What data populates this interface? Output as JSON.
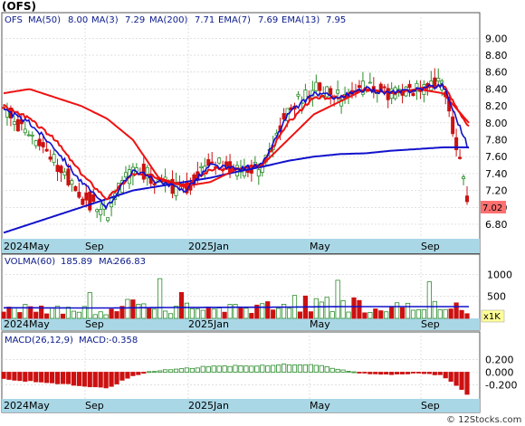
{
  "title": "(OFS)",
  "watermark": "© 12Stocks.com",
  "colors": {
    "bg": "#ffffff",
    "grid": "#cfcfcf",
    "axisband": "#a9d7e6",
    "up": "#2a8c2a",
    "down": "#cc1111",
    "ma_blue": "#1111cc",
    "ema_red": "#ee1111",
    "label_navy": "#0a1a8a",
    "price_box": "#ff7070"
  },
  "x_labels": [
    {
      "text": "2024May"
    },
    {
      "text": "Sep"
    },
    {
      "text": "2025Jan"
    },
    {
      "text": "May"
    },
    {
      "text": "Sep"
    }
  ],
  "price_panel": {
    "ticker": "OFS",
    "legend": [
      {
        "name": "MA(50)",
        "value": "8.00"
      },
      {
        "name": "MA(3)",
        "value": "7.29"
      },
      {
        "name": "MA(200)",
        "value": "7.71"
      },
      {
        "name": "EMA(7)",
        "value": "7.69"
      },
      {
        "name": "EMA(13)",
        "value": "7.95"
      }
    ],
    "yticks": [
      "9.00",
      "8.80",
      "8.60",
      "8.40",
      "8.20",
      "8.00",
      "7.80",
      "7.60",
      "7.40",
      "7.20",
      "7.00",
      "6.80"
    ],
    "last_price": "7.02"
  },
  "volume_panel": {
    "legend_name": "VOLMA(60)",
    "legend_value": "185.89",
    "ma_name": "MA:",
    "ma_value": "266.83",
    "yticks": [
      "1000",
      "500"
    ],
    "unit_badge": "x1K"
  },
  "macd_panel": {
    "legend_name": "MACD(26,12,9)",
    "legend_label": "MACD:",
    "legend_value": "-0.358",
    "yticks": [
      "0.200",
      "0.000",
      "-0.200"
    ]
  },
  "chart_data": {
    "type": "candlestick",
    "x": [
      "2024-04",
      "2024-05",
      "2024-06",
      "2024-07",
      "2024-08",
      "2024-09",
      "2024-10",
      "2024-11",
      "2024-12",
      "2025-01",
      "2025-02",
      "2025-03",
      "2025-04",
      "2025-05",
      "2025-06",
      "2025-07",
      "2025-08",
      "2025-09",
      "2025-10"
    ],
    "close": [
      8.15,
      7.85,
      7.55,
      7.1,
      6.95,
      7.5,
      7.3,
      7.2,
      7.55,
      7.45,
      7.45,
      8.2,
      8.4,
      8.3,
      8.45,
      8.35,
      8.4,
      8.45,
      7.02
    ],
    "ema7": [
      8.15,
      8.0,
      7.7,
      7.3,
      7.0,
      7.45,
      7.3,
      7.2,
      7.5,
      7.45,
      7.5,
      8.1,
      8.35,
      8.3,
      8.4,
      8.35,
      8.4,
      8.45,
      7.69
    ],
    "ema13": [
      8.2,
      8.05,
      7.8,
      7.4,
      7.1,
      7.4,
      7.35,
      7.25,
      7.45,
      7.45,
      7.5,
      8.0,
      8.3,
      8.3,
      8.4,
      8.35,
      8.4,
      8.45,
      7.95
    ],
    "ma50": [
      8.35,
      8.4,
      8.3,
      8.2,
      8.05,
      7.8,
      7.35,
      7.25,
      7.3,
      7.45,
      7.5,
      7.8,
      8.1,
      8.25,
      8.4,
      8.35,
      8.4,
      8.35,
      8.0
    ],
    "ma200": [
      6.7,
      6.8,
      6.9,
      7.0,
      7.1,
      7.2,
      7.25,
      7.3,
      7.35,
      7.42,
      7.48,
      7.55,
      7.6,
      7.63,
      7.64,
      7.67,
      7.69,
      7.71,
      7.71
    ],
    "volume": [
      150,
      240,
      200,
      170,
      180,
      300,
      260,
      220,
      200,
      260,
      230,
      350,
      330,
      320,
      300,
      240,
      250,
      280,
      186
    ],
    "volume_ma": [
      240,
      240,
      238,
      236,
      236,
      240,
      245,
      248,
      250,
      252,
      252,
      256,
      262,
      266,
      268,
      266,
      266,
      267,
      267
    ],
    "macd": [
      -0.1,
      -0.14,
      -0.17,
      -0.21,
      -0.25,
      -0.05,
      0.03,
      0.06,
      0.09,
      0.1,
      0.1,
      0.12,
      0.12,
      0.04,
      -0.02,
      -0.03,
      -0.01,
      -0.05,
      -0.36
    ],
    "ylim_price": [
      6.65,
      9.1
    ],
    "ylim_volume": [
      0,
      1150
    ],
    "ylim_macd": [
      -0.36,
      0.36
    ],
    "ylabel": "",
    "xlabel": ""
  }
}
